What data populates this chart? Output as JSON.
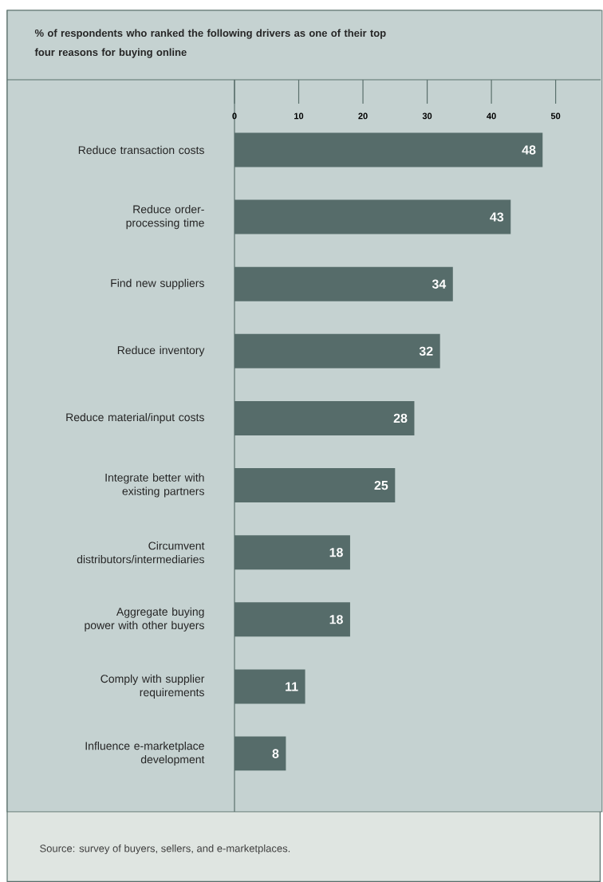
{
  "chart_data": {
    "type": "bar",
    "orientation": "horizontal",
    "title": "% of respondents who ranked the following drivers as one of their top four reasons for buying online",
    "categories": [
      "Reduce transaction costs",
      "Reduce order-processing time",
      "Find new suppliers",
      "Reduce inventory",
      "Reduce material/input costs",
      "Integrate better with existing partners",
      "Circumvent distributors/intermediaries",
      "Aggregate buying power with other buyers",
      "Comply with supplier requirements",
      "Influence e-marketplace development"
    ],
    "values": [
      48,
      43,
      34,
      32,
      28,
      25,
      18,
      18,
      11,
      8
    ],
    "color": "#566c6a",
    "xlim": [
      0,
      57
    ],
    "xticks": [
      0,
      10,
      20,
      30,
      40,
      50
    ],
    "data_labels": true,
    "grid": false,
    "annotations": [
      "Source: survey of buyers, sellers, and e-marketplaces."
    ]
  }
}
